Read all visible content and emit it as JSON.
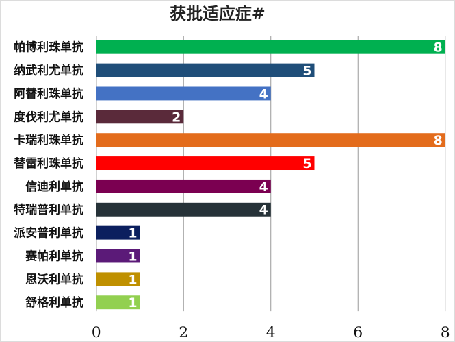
{
  "chart_data": {
    "type": "bar",
    "orientation": "horizontal",
    "title": "获批适应症#",
    "xlabel": "",
    "ylabel": "",
    "xlim": [
      0,
      8
    ],
    "x_ticks": [
      0,
      2,
      4,
      6,
      8
    ],
    "grid": true,
    "legend": "none",
    "categories": [
      "帕博利珠单抗",
      "纳武利尤单抗",
      "阿替利珠单抗",
      "度伐利尤单抗",
      "卡瑞利珠单抗",
      "替雷利珠单抗",
      "信迪利单抗",
      "特瑞普利单抗",
      "派安普利单抗",
      "赛帕利单抗",
      "恩沃利单抗",
      "舒格利单抗"
    ],
    "values": [
      8,
      5,
      4,
      2,
      8,
      5,
      4,
      4,
      1,
      1,
      1,
      1
    ],
    "colors": [
      "#00b050",
      "#1f4e79",
      "#4472c4",
      "#5a2a3a",
      "#e36c1c",
      "#ff0000",
      "#7b0051",
      "#263238",
      "#0b1f5e",
      "#5b1a78",
      "#bf9000",
      "#92d050"
    ]
  }
}
